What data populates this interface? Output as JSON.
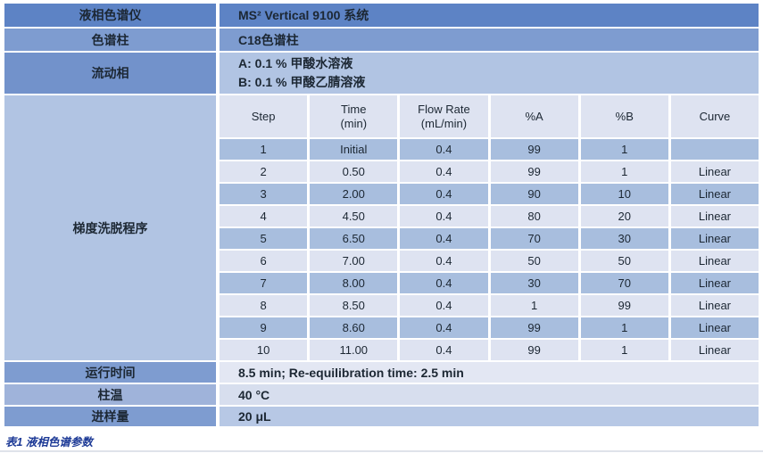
{
  "info_rows": {
    "instrument": {
      "label": "液相色谱仪",
      "value": "MS² Vertical 9100 系统"
    },
    "column": {
      "label": "色谱柱",
      "value": "C18色谱柱"
    },
    "mobile_phase": {
      "label": "流动相",
      "line_a": "A: 0.1 % 甲酸水溶液",
      "line_b": "B: 0.1 % 甲酸乙腈溶液"
    }
  },
  "gradient": {
    "label": "梯度洗脱程序",
    "headers": [
      {
        "line1": "Step",
        "line2": ""
      },
      {
        "line1": "Time",
        "line2": "(min)"
      },
      {
        "line1": "Flow Rate",
        "line2": "(mL/min)"
      },
      {
        "line1": "%A",
        "line2": ""
      },
      {
        "line1": "%B",
        "line2": ""
      },
      {
        "line1": "Curve",
        "line2": ""
      }
    ],
    "rows": [
      {
        "step": "1",
        "time": "Initial",
        "flow": "0.4",
        "pct_a": "99",
        "pct_b": "1",
        "curve": ""
      },
      {
        "step": "2",
        "time": "0.50",
        "flow": "0.4",
        "pct_a": "99",
        "pct_b": "1",
        "curve": "Linear"
      },
      {
        "step": "3",
        "time": "2.00",
        "flow": "0.4",
        "pct_a": "90",
        "pct_b": "10",
        "curve": "Linear"
      },
      {
        "step": "4",
        "time": "4.50",
        "flow": "0.4",
        "pct_a": "80",
        "pct_b": "20",
        "curve": "Linear"
      },
      {
        "step": "5",
        "time": "6.50",
        "flow": "0.4",
        "pct_a": "70",
        "pct_b": "30",
        "curve": "Linear"
      },
      {
        "step": "6",
        "time": "7.00",
        "flow": "0.4",
        "pct_a": "50",
        "pct_b": "50",
        "curve": "Linear"
      },
      {
        "step": "7",
        "time": "8.00",
        "flow": "0.4",
        "pct_a": "30",
        "pct_b": "70",
        "curve": "Linear"
      },
      {
        "step": "8",
        "time": "8.50",
        "flow": "0.4",
        "pct_a": "1",
        "pct_b": "99",
        "curve": "Linear"
      },
      {
        "step": "9",
        "time": "8.60",
        "flow": "0.4",
        "pct_a": "99",
        "pct_b": "1",
        "curve": "Linear"
      },
      {
        "step": "10",
        "time": "11.00",
        "flow": "0.4",
        "pct_a": "99",
        "pct_b": "1",
        "curve": "Linear"
      }
    ]
  },
  "footer_rows": {
    "run_time": {
      "label": "运行时间",
      "value": "8.5 min; Re-equilibration time: 2.5 min"
    },
    "column_temp": {
      "label": "柱温",
      "value": "40 °C"
    },
    "injection_volume": {
      "label": "进样量",
      "value": "20 μL"
    }
  },
  "caption": "表1 液相色谱参数",
  "colors": {
    "row_dark": "#5d83c5",
    "row_medium": "#7e9cd0",
    "row_medium2": "#7292cb",
    "cell_light": "#b1c4e3",
    "grad_light": "#dee3f1",
    "grad_blue": "#a8bede",
    "label_light": "#9fb3da",
    "value_pale": "#e3e7f3",
    "value_pale2": "#d7deee",
    "value_blue": "#b7c8e5",
    "text_dark": "#1c2733",
    "caption_blue": "#1d3a96",
    "rule_gray": "#dfe3ea"
  }
}
